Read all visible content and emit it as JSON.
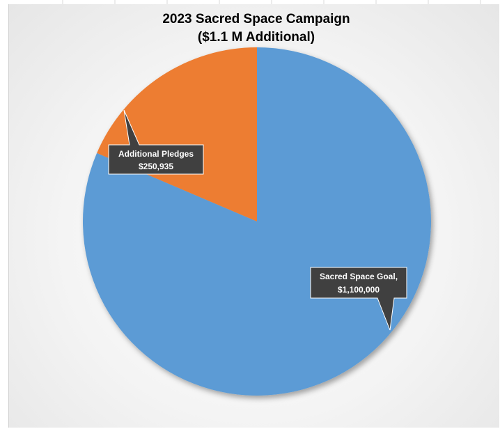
{
  "chart_data": {
    "type": "pie",
    "title": "2023 Sacred Space Campaign",
    "subtitle": "($1.1 M Additional)",
    "slices": [
      {
        "label": "Sacred Space Goal,",
        "value_text": "$1,100,000",
        "value": 1100000,
        "color": "#5b9bd5"
      },
      {
        "label": "Additional Pledges",
        "value_text": "$250,935",
        "value": 250935,
        "color": "#ed7d31"
      }
    ]
  }
}
